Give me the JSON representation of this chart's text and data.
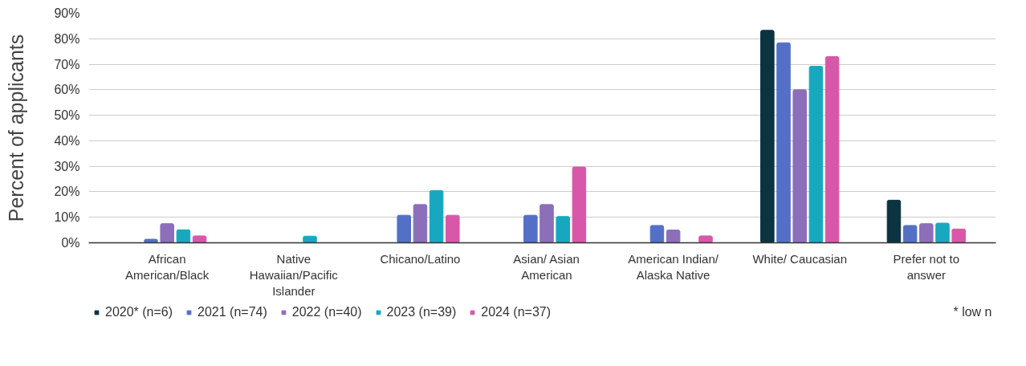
{
  "chart_data": {
    "type": "bar",
    "ylabel": "Percent of applicants",
    "categories": [
      "African American/Black",
      "Native Hawaiian/Pacific Islander",
      "Chicano/Latino",
      "Asian/ Asian American",
      "American Indian/ Alaska Native",
      "White/ Caucasian",
      "Prefer not to answer"
    ],
    "series": [
      {
        "name": "2020* (n=6)",
        "color": "#0b3340",
        "values": [
          0,
          0,
          0,
          0,
          0,
          83.3,
          16.7
        ]
      },
      {
        "name": "2021 (n=74)",
        "color": "#5470c6",
        "values": [
          1.4,
          0,
          10.8,
          10.8,
          6.8,
          78.4,
          6.8
        ]
      },
      {
        "name": "2022 (n=40)",
        "color": "#8c6fb8",
        "values": [
          7.5,
          0,
          15,
          15,
          5,
          60,
          7.5
        ]
      },
      {
        "name": "2023 (n=39)",
        "color": "#17a8c0",
        "values": [
          5.1,
          2.6,
          20.5,
          10.3,
          0,
          69.2,
          7.7
        ]
      },
      {
        "name": "2024 (n=37)",
        "color": "#d957a8",
        "values": [
          2.7,
          0,
          10.8,
          29.7,
          2.7,
          73,
          5.4
        ]
      }
    ],
    "ylim": [
      0,
      90
    ],
    "yticks": [
      {
        "value": 0,
        "label": "0%"
      },
      {
        "value": 10,
        "label": "10%"
      },
      {
        "value": 20,
        "label": "20%"
      },
      {
        "value": 30,
        "label": "30%"
      },
      {
        "value": 40,
        "label": "40%"
      },
      {
        "value": 50,
        "label": "50%"
      },
      {
        "value": 60,
        "label": "60%"
      },
      {
        "value": 70,
        "label": "70%"
      },
      {
        "value": 80,
        "label": "80%"
      },
      {
        "value": 90,
        "label": "90%"
      }
    ],
    "grid": "y",
    "legend": "bottom",
    "annotations": [
      "* low n"
    ]
  }
}
